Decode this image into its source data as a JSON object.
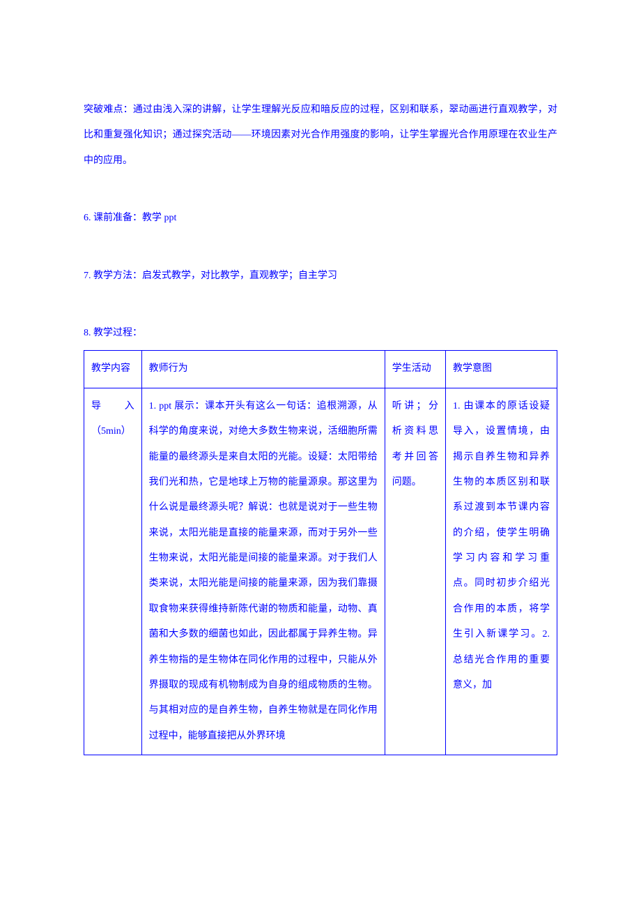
{
  "text_color": "#0000ff",
  "border_color": "#0000ff",
  "background_color": "#ffffff",
  "font_family": "SimSun",
  "font_size_pt": 10.5,
  "line_height": 2.6,
  "paragraphs": {
    "p1": "突破难点：通过由浅入深的讲解，让学生理解光反应和暗反应的过程，区别和联系，翠动画进行直观教学，对比和重复强化知识；通过探究活动——环境因素对光合作用强度的影响，让学生掌握光合作用原理在农业生产中的应用。",
    "p2": "6. 课前准备：教学 ppt",
    "p3": "7. 教学方法：启发式教学，对比教学，直观教学；自主学习",
    "p4": "8. 教学过程："
  },
  "table": {
    "columns": [
      "教学内容",
      "教师行为",
      "学生活动",
      "教学意图"
    ],
    "col_widths_pct": [
      10,
      48,
      12,
      22
    ],
    "rows": [
      {
        "c1": "教学内容",
        "c2": "教师行为",
        "c3": "学生活动",
        "c4": "教学意图"
      },
      {
        "c1": "导入（5min）",
        "c2": "1. ppt 展示：课本开头有这么一句话：追根溯源，从科学的角度来说，对绝大多数生物来说，活细胞所需能量的最终源头是来自太阳的光能。设疑：太阳带给我们光和热，它是地球上万物的能量源泉。那这里为什么说是最终源头呢？解说：也就是说对于一些生物来说，太阳光能是直接的能量来源，而对于另外一些生物来说，太阳光能是间接的能量来源。对于我们人类来说，太阳光能是间接的能量来源，因为我们靠摄取食物来获得维持新陈代谢的物质和能量，动物、真菌和大多数的细菌也如此，因此都属于异养生物。异养生物指的是生物体在同化作用的过程中，只能从外界摄取的现成有机物制成为自身的组成物质的生物。与其相对应的是自养生物，自养生物就是在同化作用过程中，能够直接把从外界环境",
        "c3": "听讲；分析资料思考并回答问题。",
        "c4": "1. 由课本的原话设疑导入，设置情境，由揭示自养生物和异养生物的本质区别和联系过渡到本节课内容的介绍，使学生明确学习内容和学习重点。同时初步介绍光合作用的本质，将学生引入新课学习。2. 总结光合作用的重要意义，加"
      }
    ]
  }
}
